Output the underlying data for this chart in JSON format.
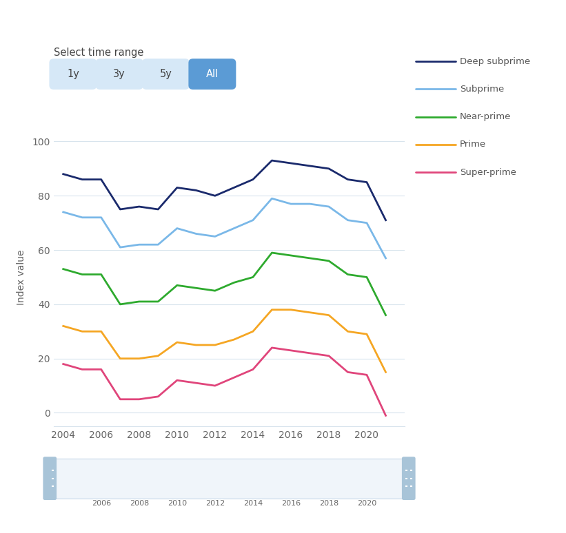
{
  "years": [
    2004,
    2005,
    2006,
    2007,
    2008,
    2009,
    2010,
    2011,
    2012,
    2013,
    2014,
    2015,
    2016,
    2017,
    2018,
    2019,
    2020,
    2021
  ],
  "deep_subprime": [
    88,
    86,
    86,
    75,
    76,
    75,
    83,
    82,
    80,
    83,
    86,
    93,
    92,
    91,
    90,
    86,
    85,
    71
  ],
  "subprime": [
    74,
    72,
    72,
    61,
    62,
    62,
    68,
    66,
    65,
    68,
    71,
    79,
    77,
    77,
    76,
    71,
    70,
    57
  ],
  "near_prime": [
    53,
    51,
    51,
    40,
    41,
    41,
    47,
    46,
    45,
    48,
    50,
    59,
    58,
    57,
    56,
    51,
    50,
    36
  ],
  "prime": [
    32,
    30,
    30,
    20,
    20,
    21,
    26,
    25,
    25,
    27,
    30,
    38,
    38,
    37,
    36,
    30,
    29,
    15
  ],
  "super_prime": [
    18,
    16,
    16,
    5,
    5,
    6,
    12,
    11,
    10,
    13,
    16,
    24,
    23,
    22,
    21,
    15,
    14,
    -1
  ],
  "colors": {
    "deep_subprime": "#1a2a6c",
    "subprime": "#7ab8e8",
    "near_prime": "#2eaa2e",
    "prime": "#f5a623",
    "super_prime": "#e0457b"
  },
  "legend_labels": [
    "Deep subprime",
    "Subprime",
    "Near-prime",
    "Prime",
    "Super-prime"
  ],
  "ylabel": "Index value",
  "ylim": [
    -5,
    105
  ],
  "yticks": [
    0,
    20,
    40,
    60,
    80,
    100
  ],
  "xlim": [
    2003.5,
    2022
  ],
  "xticks": [
    2004,
    2006,
    2008,
    2010,
    2012,
    2014,
    2016,
    2018,
    2020
  ],
  "nav_xticks": [
    2006,
    2008,
    2010,
    2012,
    2014,
    2016,
    2018,
    2020
  ],
  "bg_color": "#ffffff",
  "grid_color": "#d8e4ed",
  "button_labels": [
    "1y",
    "3y",
    "5y",
    "All"
  ],
  "button_active": 3,
  "select_text": "Select time range",
  "line_width": 2.0
}
